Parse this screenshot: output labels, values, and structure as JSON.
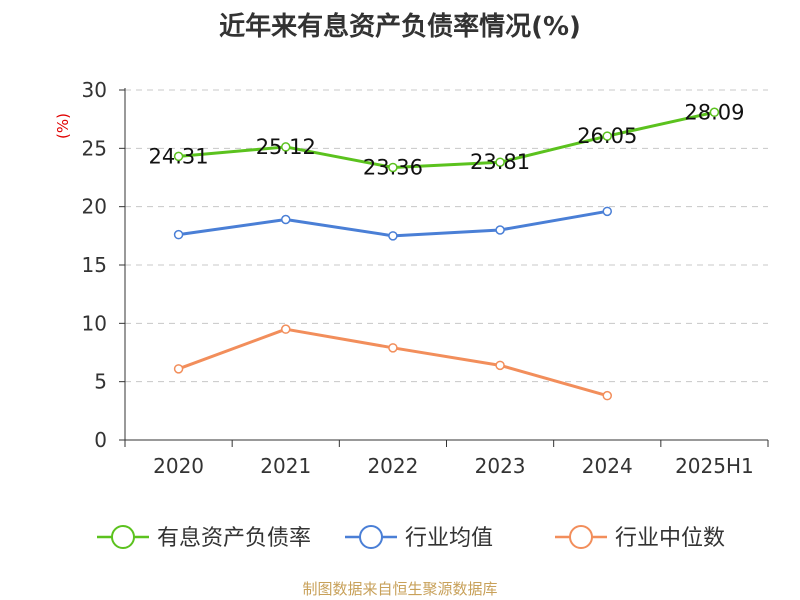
{
  "chart_data": {
    "type": "line",
    "title": "近年来有息资产负债率情况(%)",
    "ylabel": "(%)",
    "xlabel": "",
    "categories": [
      "2020",
      "2021",
      "2022",
      "2023",
      "2024",
      "2025H1"
    ],
    "ylim": [
      0,
      30
    ],
    "yticks": [
      0,
      5,
      10,
      15,
      20,
      25,
      30
    ],
    "grid": true,
    "legend_position": "bottom",
    "series": [
      {
        "name": "有息资产负债率",
        "color": "#5bc21e",
        "values": [
          24.31,
          25.12,
          23.36,
          23.81,
          26.05,
          28.09
        ],
        "labels": [
          "24.31",
          "25.12",
          "23.36",
          "23.81",
          "26.05",
          "28.09"
        ]
      },
      {
        "name": "行业均值",
        "color": "#4a7fd6",
        "values": [
          17.6,
          18.9,
          17.5,
          18.0,
          19.6,
          null
        ],
        "labels": []
      },
      {
        "name": "行业中位数",
        "color": "#f28e5b",
        "values": [
          6.1,
          9.5,
          7.9,
          6.4,
          3.8,
          null
        ],
        "labels": []
      }
    ]
  },
  "source": "制图数据来自恒生聚源数据库"
}
